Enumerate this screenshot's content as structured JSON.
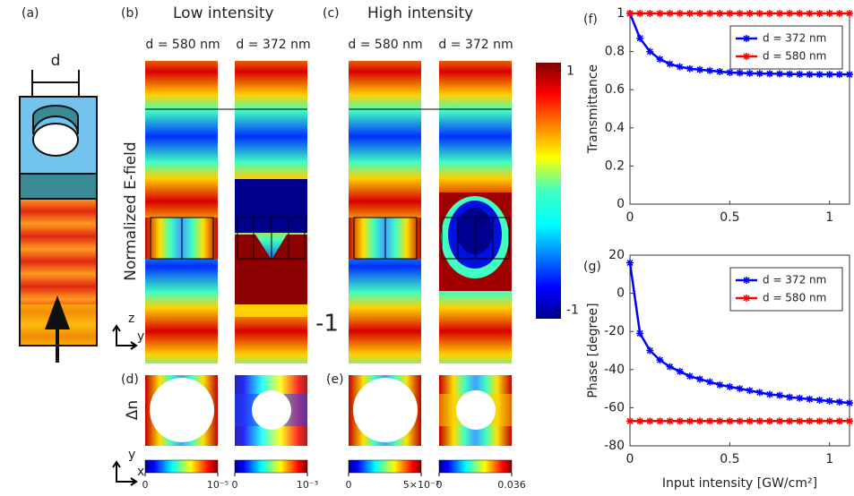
{
  "panel_labels": [
    "(a)",
    "(b)",
    "(c)",
    "(d)",
    "(e)",
    "(f)",
    "(g)"
  ],
  "schematic": {
    "d": "d"
  },
  "field": {
    "titles": [
      "Low intensity",
      "High intensity"
    ],
    "columns": [
      "d = 580 nm",
      "d = 372 nm",
      "d = 580 nm",
      "d = 372 nm"
    ],
    "ylabel": "Normalized E-field",
    "axes": [
      "z",
      "y"
    ],
    "colorbar": {
      "lim": [
        -1.07,
        1.07
      ],
      "ticks": [
        1,
        -1
      ]
    },
    "overlay_label": "-1"
  },
  "index": {
    "ylabel": "Δn",
    "axes": [
      "y",
      "x"
    ],
    "colorbars": [
      {
        "ticks": [
          0,
          {
            "value": 1e-05,
            "label": "10⁻⁵"
          }
        ]
      },
      {
        "ticks": [
          0,
          {
            "value": 0.001,
            "label": "10⁻³"
          }
        ]
      },
      {
        "ticks": [
          0,
          {
            "value": 0.005,
            "label": "5×10⁻³"
          }
        ]
      },
      {
        "ticks": [
          0,
          0.036
        ]
      }
    ]
  },
  "chart_data": [
    {
      "type": "line",
      "ylabel": "Transmittance",
      "x": [
        0,
        0.05,
        0.1,
        0.15,
        0.2,
        0.25,
        0.3,
        0.35,
        0.4,
        0.45,
        0.5,
        0.55,
        0.6,
        0.65,
        0.7,
        0.75,
        0.8,
        0.85,
        0.9,
        0.95,
        1,
        1.05,
        1.1
      ],
      "series": [
        {
          "name": "d = 372 nm",
          "color": "#0000ff",
          "values": [
            1,
            0.87,
            0.8,
            0.76,
            0.735,
            0.72,
            0.71,
            0.705,
            0.7,
            0.695,
            0.69,
            0.688,
            0.686,
            0.685,
            0.684,
            0.683,
            0.682,
            0.681,
            0.68,
            0.68,
            0.68,
            0.68,
            0.68
          ]
        },
        {
          "name": "d = 580 nm",
          "color": "#ff0000",
          "values": [
            1,
            1,
            1,
            1,
            1,
            1,
            1,
            1,
            1,
            1,
            1,
            1,
            1,
            1,
            1,
            1,
            1,
            1,
            1,
            1,
            1,
            1,
            1
          ]
        }
      ],
      "xlim": [
        0,
        1.1
      ],
      "xticks": [
        0,
        0.5,
        1
      ],
      "ylim": [
        0,
        1
      ],
      "yticks": [
        0,
        0.2,
        0.4,
        0.6,
        0.8,
        1
      ],
      "legend": "upper right"
    },
    {
      "type": "line",
      "ylabel": "Phase [degree]",
      "xlabel": "Input intensity [GW/cm²]",
      "x": [
        0,
        0.05,
        0.1,
        0.15,
        0.2,
        0.25,
        0.3,
        0.35,
        0.4,
        0.45,
        0.5,
        0.55,
        0.6,
        0.65,
        0.7,
        0.75,
        0.8,
        0.85,
        0.9,
        0.95,
        1,
        1.05,
        1.1
      ],
      "series": [
        {
          "name": "d = 372 nm",
          "color": "#0000ff",
          "values": [
            16,
            -21,
            -30,
            -35,
            -38.5,
            -41,
            -43.5,
            -45,
            -46.5,
            -48,
            -49,
            -50,
            -51,
            -52,
            -53,
            -53.5,
            -54.5,
            -55,
            -55.5,
            -56,
            -56.5,
            -57,
            -57.5
          ]
        },
        {
          "name": "d = 580 nm",
          "color": "#ff0000",
          "values": [
            -67,
            -67,
            -67,
            -67,
            -67,
            -67,
            -67,
            -67,
            -67,
            -67,
            -67,
            -67,
            -67,
            -67,
            -67,
            -67,
            -67,
            -67,
            -67,
            -67,
            -67,
            -67,
            -67
          ]
        }
      ],
      "xlim": [
        0,
        1.1
      ],
      "xticks": [
        0,
        0.5,
        1
      ],
      "ylim": [
        -80,
        20
      ],
      "yticks": [
        -80,
        -60,
        -40,
        -20,
        0,
        20
      ],
      "legend": "upper right"
    }
  ]
}
